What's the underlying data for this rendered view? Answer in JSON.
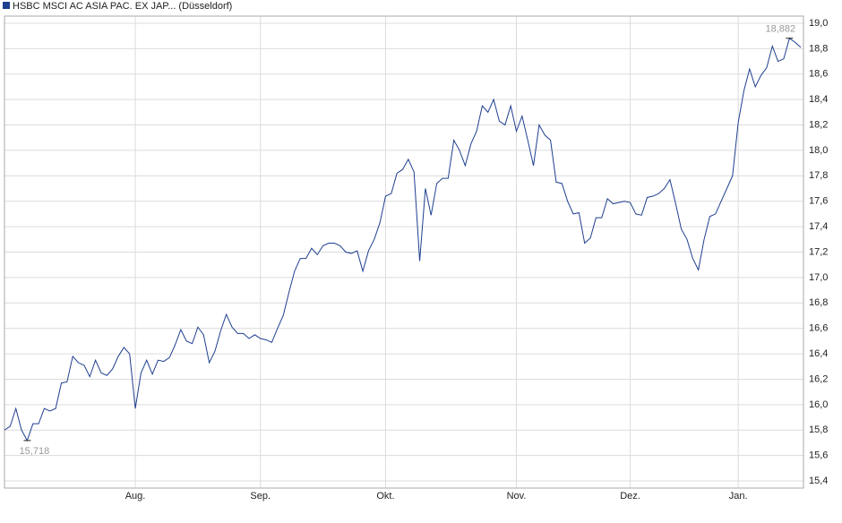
{
  "chart_data": {
    "type": "line",
    "series": [
      {
        "name": "HSBC MSCI AC ASIA PAC. EX JAP... (Düsseldorf)",
        "color": "#1f3f8f",
        "values": [
          15.8,
          15.83,
          15.97,
          15.8,
          15.718,
          15.85,
          15.85,
          15.97,
          15.95,
          15.97,
          16.17,
          16.18,
          16.38,
          16.33,
          16.31,
          16.22,
          16.35,
          16.25,
          16.23,
          16.28,
          16.38,
          16.45,
          16.4,
          15.97,
          16.25,
          16.35,
          16.24,
          16.35,
          16.34,
          16.37,
          16.47,
          16.59,
          16.5,
          16.48,
          16.61,
          16.55,
          16.33,
          16.42,
          16.58,
          16.71,
          16.61,
          16.56,
          16.56,
          16.52,
          16.55,
          16.52,
          16.51,
          16.49,
          16.6,
          16.7,
          16.88,
          17.05,
          17.15,
          17.15,
          17.23,
          17.18,
          17.25,
          17.27,
          17.27,
          17.25,
          17.2,
          17.19,
          17.21,
          17.05,
          17.21,
          17.3,
          17.43,
          17.64,
          17.66,
          17.82,
          17.85,
          17.93,
          17.83,
          17.13,
          17.7,
          17.49,
          17.74,
          17.78,
          17.78,
          18.08,
          18.0,
          17.88,
          18.05,
          18.15,
          18.35,
          18.3,
          18.4,
          18.23,
          18.2,
          18.35,
          18.15,
          18.27,
          18.08,
          17.88,
          18.2,
          18.12,
          18.08,
          17.75,
          17.74,
          17.6,
          17.5,
          17.51,
          17.27,
          17.31,
          17.47,
          17.47,
          17.62,
          17.58,
          17.59,
          17.6,
          17.59,
          17.5,
          17.49,
          17.63,
          17.64,
          17.66,
          17.7,
          17.77,
          17.58,
          17.38,
          17.3,
          17.15,
          17.06,
          17.3,
          17.48,
          17.5,
          17.6,
          17.7,
          17.8,
          18.22,
          18.47,
          18.64,
          18.5,
          18.59,
          18.65,
          18.82,
          18.7,
          18.72,
          18.882,
          18.85,
          18.81
        ],
        "value_labels": [
          null,
          null,
          null,
          null,
          "15,718",
          null,
          null,
          null,
          null,
          null,
          null,
          null,
          null,
          null,
          null,
          null,
          null,
          null,
          null,
          null,
          null,
          null,
          null,
          null,
          null,
          null,
          null,
          null,
          null,
          null,
          null,
          null,
          null,
          null,
          null,
          null,
          null,
          null,
          null,
          null,
          null,
          null,
          null,
          null,
          null,
          null,
          null,
          null,
          null,
          null,
          null,
          null,
          null,
          null,
          null,
          null,
          null,
          null,
          null,
          null,
          null,
          null,
          null,
          null,
          null,
          null,
          null,
          null,
          null,
          null,
          null,
          null,
          null,
          null,
          null,
          null,
          null,
          null,
          null,
          null,
          null,
          null,
          null,
          null,
          null,
          null,
          null,
          null,
          null,
          null,
          null,
          null,
          null,
          null,
          null,
          null,
          null,
          null,
          null,
          null,
          null,
          null,
          null,
          null,
          null,
          null,
          null,
          null,
          null,
          null,
          null,
          null,
          null,
          null,
          null,
          null,
          null,
          null,
          null,
          null,
          null,
          null,
          null,
          null,
          null,
          null,
          null,
          null,
          null,
          null,
          null,
          null,
          null,
          null,
          null,
          null,
          null,
          null,
          "18,882",
          null,
          null
        ]
      }
    ],
    "categories": [
      null,
      null,
      null,
      null,
      null,
      null,
      null,
      null,
      null,
      null,
      null,
      null,
      null,
      null,
      null,
      null,
      null,
      null,
      null,
      null,
      null,
      null,
      null,
      "Aug.",
      null,
      null,
      null,
      null,
      null,
      null,
      null,
      null,
      null,
      null,
      null,
      null,
      null,
      null,
      null,
      null,
      null,
      null,
      null,
      null,
      null,
      "Sep.",
      null,
      null,
      null,
      null,
      null,
      null,
      null,
      null,
      null,
      null,
      null,
      null,
      null,
      null,
      null,
      null,
      null,
      null,
      null,
      null,
      null,
      "Okt.",
      null,
      null,
      null,
      null,
      null,
      null,
      null,
      null,
      null,
      null,
      null,
      null,
      null,
      null,
      null,
      null,
      null,
      null,
      null,
      null,
      null,
      null,
      "Nov.",
      null,
      null,
      null,
      null,
      null,
      null,
      null,
      null,
      null,
      null,
      null,
      null,
      null,
      null,
      null,
      null,
      null,
      null,
      null,
      "Dez.",
      null,
      null,
      null,
      null,
      null,
      null,
      null,
      null,
      null,
      null,
      null,
      null,
      null,
      null,
      null,
      null,
      null,
      null,
      "Jan.",
      null,
      null,
      null,
      null,
      null,
      null,
      null,
      null,
      null,
      null,
      null
    ],
    "ylim": [
      15.344,
      19.056
    ],
    "yticks": [
      {
        "value": 15.4,
        "label": "15,4"
      },
      {
        "value": 15.6,
        "label": "15,6"
      },
      {
        "value": 15.8,
        "label": "15,8"
      },
      {
        "value": 16.0,
        "label": "16,0"
      },
      {
        "value": 16.2,
        "label": "16,2"
      },
      {
        "value": 16.4,
        "label": "16,4"
      },
      {
        "value": 16.6,
        "label": "16,6"
      },
      {
        "value": 16.8,
        "label": "16,8"
      },
      {
        "value": 17.0,
        "label": "17,0"
      },
      {
        "value": 17.2,
        "label": "17,2"
      },
      {
        "value": 17.4,
        "label": "17,4"
      },
      {
        "value": 17.6,
        "label": "17,6"
      },
      {
        "value": 17.8,
        "label": "17,8"
      },
      {
        "value": 18.0,
        "label": "18,0"
      },
      {
        "value": 18.2,
        "label": "18,2"
      },
      {
        "value": 18.4,
        "label": "18,4"
      },
      {
        "value": 18.6,
        "label": "18,6"
      },
      {
        "value": 18.8,
        "label": "18,8"
      },
      {
        "value": 19.0,
        "label": "19,0"
      }
    ],
    "grid": true
  }
}
